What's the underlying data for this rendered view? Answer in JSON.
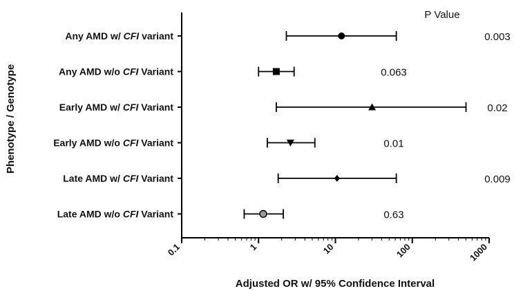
{
  "chart_data": {
    "type": "forest",
    "xscale": "log",
    "xlim": [
      0.1,
      1000
    ],
    "xticks": [
      "0.1",
      "1",
      "10",
      "100",
      "1000"
    ],
    "xlabel": "Adjusted OR w/ 95% Confidence Interval",
    "ylabel": "Phenotype / Genotype",
    "pvalue_header": "P Value",
    "rows": [
      {
        "pre": "Any  AMD w/ ",
        "gene": "CFI",
        "post": " variant",
        "or": 12,
        "lo": 2.3,
        "hi": 62,
        "p": "0.003",
        "marker": "circle"
      },
      {
        "pre": "Any AMD w/o ",
        "gene": "CFI",
        "post": " Variant",
        "or": 1.7,
        "lo": 1.0,
        "hi": 2.9,
        "p": "0.063",
        "marker": "square"
      },
      {
        "pre": "Early AMD w/ ",
        "gene": "CFI",
        "post": " Variant",
        "or": 30,
        "lo": 1.7,
        "hi": 500,
        "p": "0.02",
        "marker": "triangle-up"
      },
      {
        "pre": "Early AMD w/o ",
        "gene": "CFI",
        "post": " Variant",
        "or": 2.6,
        "lo": 1.3,
        "hi": 5.4,
        "p": "0.01",
        "marker": "triangle-down"
      },
      {
        "pre": "Late AMD w/ ",
        "gene": "CFI",
        "post": " Variant",
        "or": 10.5,
        "lo": 1.8,
        "hi": 62,
        "p": "0.009",
        "marker": "diamond"
      },
      {
        "pre": "Late AMD w/o ",
        "gene": "CFI",
        "post": " Variant",
        "or": 1.15,
        "lo": 0.65,
        "hi": 2.1,
        "p": "0.63",
        "marker": "circle-gray"
      }
    ]
  }
}
